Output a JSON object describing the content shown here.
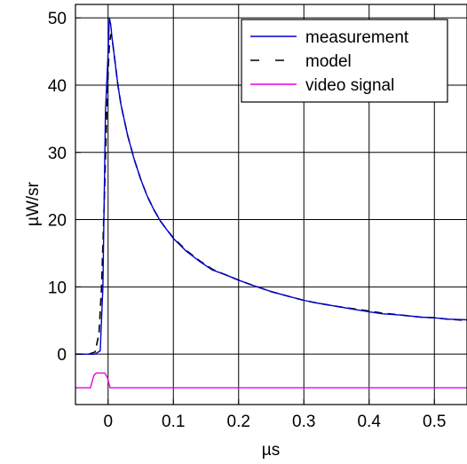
{
  "chart_data": {
    "type": "line",
    "xlabel": "µs",
    "ylabel": "µW/sr",
    "xlim": [
      -0.05,
      0.55
    ],
    "ylim": [
      -7.5,
      52
    ],
    "xticks": [
      0,
      0.1,
      0.2,
      0.3,
      0.4,
      0.5
    ],
    "xtick_labels": [
      "0",
      "0.1",
      "0.2",
      "0.3",
      "0.4",
      "0.5"
    ],
    "yticks": [
      0,
      10,
      20,
      30,
      40,
      50
    ],
    "ytick_labels": [
      "0",
      "10",
      "20",
      "30",
      "40",
      "50"
    ],
    "grid": true,
    "legend_position": "top-right",
    "series": [
      {
        "name": "measurement",
        "color": "#0000cc",
        "style": "solid",
        "x": [
          -0.05,
          -0.02,
          -0.012,
          -0.008,
          -0.004,
          0.0,
          0.002,
          0.004,
          0.006,
          0.01,
          0.015,
          0.02,
          0.03,
          0.04,
          0.05,
          0.06,
          0.07,
          0.08,
          0.09,
          0.1,
          0.12,
          0.14,
          0.16,
          0.18,
          0.2,
          0.22,
          0.25,
          0.28,
          0.3,
          0.32,
          0.35,
          0.38,
          0.4,
          0.42,
          0.45,
          0.48,
          0.5,
          0.52,
          0.55
        ],
        "y": [
          0,
          0,
          0.5,
          10,
          36,
          45,
          50,
          49,
          47,
          44,
          40,
          37,
          32.5,
          29,
          26,
          23.5,
          21.5,
          19.8,
          18.5,
          17.2,
          15.3,
          13.8,
          12.5,
          11.8,
          11.0,
          10.3,
          9.3,
          8.5,
          8.0,
          7.6,
          7.1,
          6.6,
          6.3,
          6.0,
          5.8,
          5.5,
          5.4,
          5.2,
          5.1
        ]
      },
      {
        "name": "model",
        "color": "#000000",
        "style": "dashed",
        "x": [
          -0.05,
          -0.03,
          -0.02,
          -0.014,
          -0.01,
          -0.006,
          -0.002,
          0.0,
          0.002,
          0.004,
          0.006,
          0.01,
          0.015,
          0.02,
          0.03,
          0.04,
          0.05,
          0.06,
          0.07,
          0.08,
          0.09,
          0.1,
          0.12,
          0.14,
          0.16,
          0.18,
          0.2,
          0.22,
          0.25,
          0.28,
          0.3,
          0.32,
          0.35,
          0.38,
          0.4,
          0.42,
          0.45,
          0.48,
          0.5,
          0.52,
          0.55
        ],
        "y": [
          0,
          0,
          0.3,
          3,
          10,
          22,
          36,
          42,
          46,
          47.5,
          47,
          44,
          40,
          37,
          32.5,
          29,
          26,
          23.5,
          21.5,
          19.8,
          18.5,
          17.3,
          15.4,
          13.9,
          12.6,
          11.8,
          11.0,
          10.3,
          9.3,
          8.5,
          8.0,
          7.6,
          7.1,
          6.7,
          6.4,
          6.1,
          5.8,
          5.5,
          5.4,
          5.2,
          5.0
        ]
      },
      {
        "name": "video signal",
        "color": "#e600e6",
        "style": "solid",
        "x": [
          -0.05,
          -0.027,
          -0.022,
          -0.018,
          -0.005,
          -0.001,
          0.003,
          0.006,
          0.55
        ],
        "y": [
          -5,
          -5,
          -3.2,
          -2.8,
          -2.8,
          -3.5,
          -5,
          -5,
          -5
        ]
      }
    ]
  }
}
